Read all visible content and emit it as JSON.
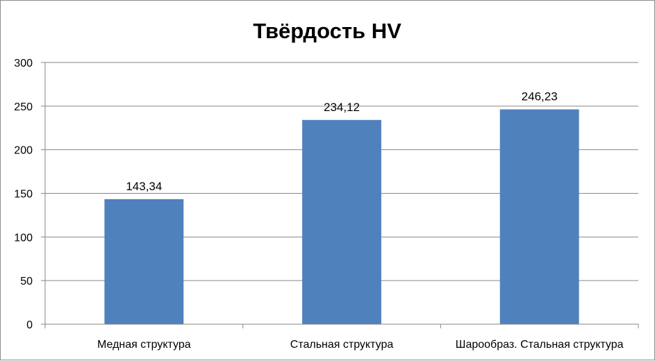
{
  "chart_data": {
    "type": "bar",
    "title": "Твёрдость HV",
    "xlabel": "",
    "ylabel": "",
    "categories": [
      "Медная структура",
      "Стальная структура",
      "Шарообраз. Стальная структура"
    ],
    "values": [
      143.34,
      234.12,
      246.23
    ],
    "data_labels": [
      "143,34",
      "234,12",
      "246,23"
    ],
    "ylim": [
      0,
      300
    ],
    "yticks": [
      0,
      50,
      100,
      150,
      200,
      250,
      300
    ],
    "grid": true,
    "legend": "none",
    "bar_color": "#4f81bd",
    "grid_color": "#868686"
  }
}
